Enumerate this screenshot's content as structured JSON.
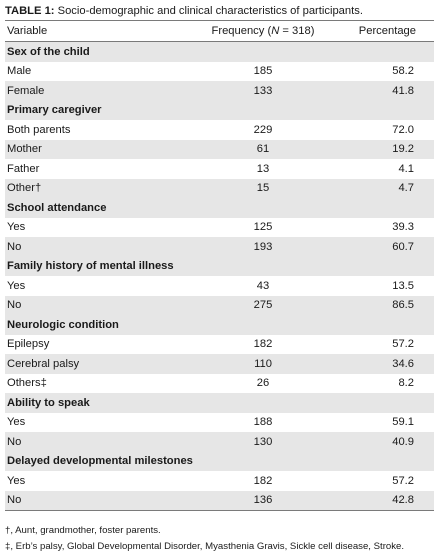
{
  "caption": {
    "label": "TABLE 1:",
    "text": " Socio-demographic and clinical characteristics of participants."
  },
  "header": {
    "variable": "Variable",
    "frequency_prefix": "Frequency (",
    "frequency_n": "N",
    "frequency_suffix": " = 318)",
    "percentage": "Percentage"
  },
  "groups": [
    {
      "title": "Sex of the child",
      "rows": [
        {
          "label": "Male",
          "frequency": "185",
          "percentage": "58.2"
        },
        {
          "label": "Female",
          "frequency": "133",
          "percentage": "41.8"
        }
      ]
    },
    {
      "title": "Primary caregiver",
      "rows": [
        {
          "label": "Both parents",
          "frequency": "229",
          "percentage": "72.0"
        },
        {
          "label": "Mother",
          "frequency": "61",
          "percentage": "19.2"
        },
        {
          "label": "Father",
          "frequency": "13",
          "percentage": "4.1"
        },
        {
          "label": "Other†",
          "frequency": "15",
          "percentage": "4.7"
        }
      ]
    },
    {
      "title": "School attendance",
      "rows": [
        {
          "label": "Yes",
          "frequency": "125",
          "percentage": "39.3"
        },
        {
          "label": "No",
          "frequency": "193",
          "percentage": "60.7"
        }
      ]
    },
    {
      "title": "Family history of mental illness",
      "rows": [
        {
          "label": "Yes",
          "frequency": "43",
          "percentage": "13.5"
        },
        {
          "label": "No",
          "frequency": "275",
          "percentage": "86.5"
        }
      ]
    },
    {
      "title": "Neurologic condition",
      "rows": [
        {
          "label": "Epilepsy",
          "frequency": "182",
          "percentage": "57.2"
        },
        {
          "label": "Cerebral palsy",
          "frequency": "110",
          "percentage": "34.6"
        },
        {
          "label": "Others‡",
          "frequency": "26",
          "percentage": "8.2"
        }
      ]
    },
    {
      "title": "Ability to speak",
      "rows": [
        {
          "label": "Yes",
          "frequency": "188",
          "percentage": "59.1"
        },
        {
          "label": "No",
          "frequency": "130",
          "percentage": "40.9"
        }
      ]
    },
    {
      "title": "Delayed developmental milestones",
      "rows": [
        {
          "label": "Yes",
          "frequency": "182",
          "percentage": "57.2"
        },
        {
          "label": "No",
          "frequency": "136",
          "percentage": "42.8"
        }
      ]
    }
  ],
  "notes": [
    "†, Aunt, grandmother, foster parents.",
    "‡, Erb’s palsy, Global Developmental Disorder, Myasthenia Gravis, Sickle cell disease, Stroke."
  ]
}
